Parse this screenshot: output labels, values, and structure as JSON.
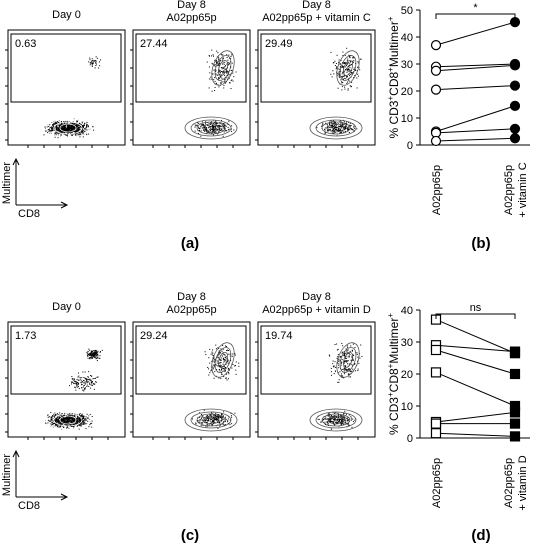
{
  "flow_rows": [
    {
      "plots": [
        {
          "title": [
            "Day 0"
          ],
          "gate": "0.63"
        },
        {
          "title": [
            "Day 8",
            "A02pp65p"
          ],
          "gate": "27.44"
        },
        {
          "title": [
            "Day 8",
            "A02pp65p + vitamin C"
          ],
          "gate": "29.49"
        }
      ],
      "y_axis": "Multimer",
      "x_axis": "CD8",
      "panel_label": "(a)"
    },
    {
      "plots": [
        {
          "title": [
            "Day 0"
          ],
          "gate": "1.73"
        },
        {
          "title": [
            "Day 8",
            "A02pp65p"
          ],
          "gate": "29.24"
        },
        {
          "title": [
            "Day 8",
            "A02pp65p + vitamin D"
          ],
          "gate": "19.74"
        }
      ],
      "y_axis": "Multimer",
      "x_axis": "CD8",
      "panel_label": "(c)"
    }
  ],
  "chart_data": [
    {
      "type": "paired",
      "panel_label": "(b)",
      "ylabel": [
        "% CD3",
        "+",
        "CD8",
        "+",
        "Multimer",
        "+"
      ],
      "categories": [
        [
          "A02pp65p"
        ],
        [
          "A02pp65p",
          "+ vitamin C"
        ]
      ],
      "markers": [
        "open-circle",
        "filled-circle"
      ],
      "annotation": "*",
      "ylim": [
        0,
        50
      ],
      "yticks": [
        0,
        10,
        20,
        30,
        40,
        50
      ],
      "series": [
        {
          "values": [
            37,
            45.5
          ]
        },
        {
          "values": [
            29,
            30
          ]
        },
        {
          "values": [
            27.5,
            29.5
          ]
        },
        {
          "values": [
            20.5,
            22
          ]
        },
        {
          "values": [
            5,
            14.5
          ]
        },
        {
          "values": [
            4.5,
            6
          ]
        },
        {
          "values": [
            1.5,
            2.5
          ]
        }
      ]
    },
    {
      "type": "paired",
      "panel_label": "(d)",
      "ylabel": [
        "% CD3",
        "+",
        "CD8",
        "+",
        "Multimer",
        "+"
      ],
      "categories": [
        [
          "A02pp65p"
        ],
        [
          "A02pp65p",
          "+ vitamin D"
        ]
      ],
      "markers": [
        "open-square",
        "filled-square"
      ],
      "annotation": "ns",
      "ylim": [
        0,
        40
      ],
      "yticks": [
        0,
        10,
        20,
        30,
        40
      ],
      "series": [
        {
          "values": [
            37,
            26.5
          ]
        },
        {
          "values": [
            29,
            27
          ]
        },
        {
          "values": [
            27.5,
            20
          ]
        },
        {
          "values": [
            20.5,
            10
          ]
        },
        {
          "values": [
            5,
            8
          ]
        },
        {
          "values": [
            4.5,
            4.5
          ]
        },
        {
          "values": [
            1.5,
            0.5
          ]
        }
      ]
    }
  ]
}
